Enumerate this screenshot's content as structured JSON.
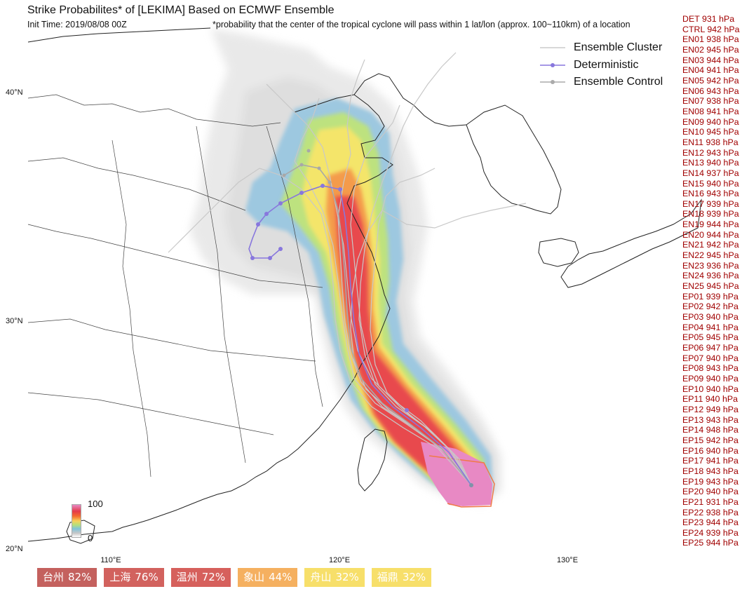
{
  "header": {
    "title": "Strike Probabilites* of [LEKIMA] Based on ECMWF Ensemble",
    "init_time": "Init Time: 2019/08/08 00Z",
    "footnote": "*probability that the center of the tropical cyclone will pass within 1 lat/lon (approx. 100~110km) of a location"
  },
  "axes": {
    "lat_labels": [
      "40°N",
      "30°N",
      "20°N"
    ],
    "lon_labels": [
      "110°E",
      "120°E",
      "130°E"
    ]
  },
  "legend": {
    "items": [
      {
        "label": "Ensemble Cluster",
        "color": "#cccccc"
      },
      {
        "label": "Deterministic",
        "color": "#8877dd"
      },
      {
        "label": "Ensemble Control",
        "color": "#aaaaaa"
      }
    ]
  },
  "colorbar": {
    "max_label": "100",
    "min_label": "0"
  },
  "pressures": [
    "DET 931 hPa",
    "CTRL 942 hPa",
    "EN01 938 hPa",
    "EN02 945 hPa",
    "EN03 944 hPa",
    "EN04 941 hPa",
    "EN05 942 hPa",
    "EN06 943 hPa",
    "EN07 938 hPa",
    "EN08 941 hPa",
    "EN09 940 hPa",
    "EN10 945 hPa",
    "EN11 938 hPa",
    "EN12 943 hPa",
    "EN13 940 hPa",
    "EN14 937 hPa",
    "EN15 940 hPa",
    "EN16 943 hPa",
    "EN17 939 hPa",
    "EN18 939 hPa",
    "EN19 944 hPa",
    "EN20 944 hPa",
    "EN21 942 hPa",
    "EN22 945 hPa",
    "EN23 936 hPa",
    "EN24 936 hPa",
    "EN25 945 hPa",
    "EP01 939 hPa",
    "EP02 942 hPa",
    "EP03 940 hPa",
    "EP04 941 hPa",
    "EP05 945 hPa",
    "EP06 947 hPa",
    "EP07 940 hPa",
    "EP08 943 hPa",
    "EP09 940 hPa",
    "EP10 940 hPa",
    "EP11 940 hPa",
    "EP12 949 hPa",
    "EP13 943 hPa",
    "EP14 948 hPa",
    "EP15 942 hPa",
    "EP16 940 hPa",
    "EP17 941 hPa",
    "EP18 943 hPa",
    "EP19 943 hPa",
    "EP20 940 hPa",
    "EP21 931 hPa",
    "EP22 938 hPa",
    "EP23 944 hPa",
    "EP24 939 hPa",
    "EP25 944 hPa"
  ],
  "cities": [
    {
      "name": "台州",
      "pct": "82%",
      "color": "#c4615e"
    },
    {
      "name": "上海",
      "pct": "76%",
      "color": "#d2625e"
    },
    {
      "name": "温州",
      "pct": "72%",
      "color": "#d6605c"
    },
    {
      "name": "象山",
      "pct": "44%",
      "color": "#f5b060"
    },
    {
      "name": "舟山",
      "pct": "32%",
      "color": "#f7df6a"
    },
    {
      "name": "福鼎",
      "pct": "32%",
      "color": "#f7df6a"
    }
  ]
}
